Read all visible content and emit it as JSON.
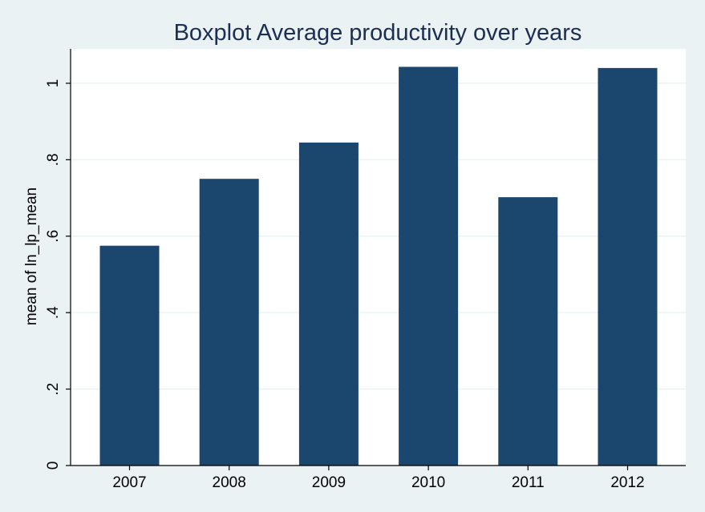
{
  "chart_data": {
    "type": "bar",
    "title": "Boxplot Average productivity over years",
    "xlabel": "",
    "ylabel": "mean of ln_lp_mean",
    "categories": [
      "2007",
      "2008",
      "2009",
      "2010",
      "2011",
      "2012"
    ],
    "values": [
      0.575,
      0.75,
      0.845,
      1.043,
      0.702,
      1.04
    ],
    "ylim": [
      0,
      1.09
    ],
    "yticks": [
      0,
      0.2,
      0.4,
      0.6,
      0.8,
      1
    ],
    "ytick_labels": [
      "0",
      ".2",
      ".4",
      ".6",
      ".8",
      "1"
    ],
    "grid": true,
    "legend": "none",
    "colors": {
      "bar": "#1b466e",
      "plot_background": "#ffffff",
      "page_background": "#eaf2f3",
      "grid": "#eaf2f3",
      "title": "#1c2e52",
      "axis": "#000000"
    }
  }
}
